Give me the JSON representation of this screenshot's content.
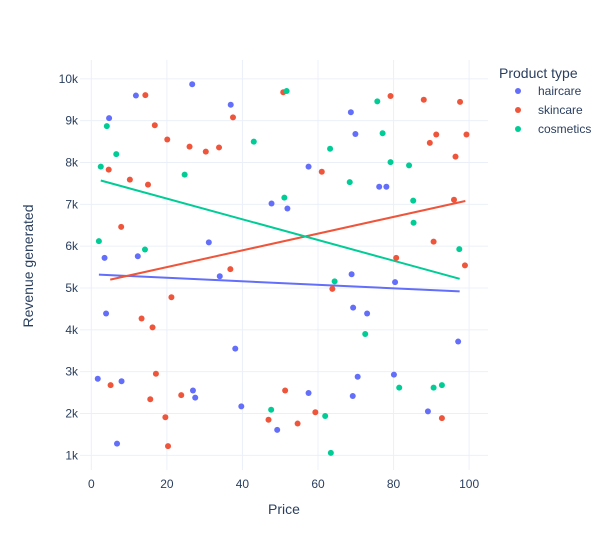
{
  "chart_data": {
    "type": "scatter",
    "xlabel": "Price",
    "ylabel": "Revenue generated",
    "xlim": [
      -3,
      105
    ],
    "ylim": [
      650,
      10450
    ],
    "x_ticks": [
      0,
      20,
      40,
      60,
      80,
      100
    ],
    "x_tick_labels": [
      "0",
      "20",
      "40",
      "60",
      "80",
      "100"
    ],
    "y_ticks": [
      1000,
      2000,
      3000,
      4000,
      5000,
      6000,
      7000,
      8000,
      9000,
      10000
    ],
    "y_tick_labels": [
      "1k",
      "2k",
      "3k",
      "4k",
      "5k",
      "6k",
      "7k",
      "8k",
      "9k",
      "10k"
    ],
    "grid": true,
    "legend": {
      "title": "Product type",
      "placement": "top-right"
    },
    "series": [
      {
        "name": "haircare",
        "color": "#636efa",
        "points": [
          [
            1.7,
            2830
          ],
          [
            3.5,
            5720
          ],
          [
            3.9,
            4390
          ],
          [
            4.7,
            9060
          ],
          [
            6.8,
            1280
          ],
          [
            8.0,
            2770
          ],
          [
            11.8,
            9600
          ],
          [
            12.3,
            5760
          ],
          [
            26.7,
            9870
          ],
          [
            26.9,
            2550
          ],
          [
            27.5,
            2380
          ],
          [
            31.1,
            6090
          ],
          [
            34.0,
            5280
          ],
          [
            36.9,
            9380
          ],
          [
            38.1,
            3550
          ],
          [
            39.7,
            2170
          ],
          [
            47.7,
            7020
          ],
          [
            49.2,
            1610
          ],
          [
            51.9,
            6900
          ],
          [
            57.5,
            7900
          ],
          [
            57.5,
            2490
          ],
          [
            68.7,
            9200
          ],
          [
            68.9,
            5330
          ],
          [
            69.2,
            2420
          ],
          [
            69.3,
            4530
          ],
          [
            69.9,
            8680
          ],
          [
            70.5,
            2880
          ],
          [
            73.0,
            4390
          ],
          [
            76.2,
            7420
          ],
          [
            78.1,
            7420
          ],
          [
            80.1,
            2930
          ],
          [
            80.4,
            5140
          ],
          [
            89.1,
            2050
          ],
          [
            97.1,
            3720
          ]
        ],
        "trend": [
          [
            2,
            5320
          ],
          [
            97.5,
            4920
          ]
        ]
      },
      {
        "name": "skincare",
        "color": "#ef553b",
        "points": [
          [
            4.6,
            7830
          ],
          [
            5.1,
            2680
          ],
          [
            7.9,
            6460
          ],
          [
            10.2,
            7590
          ],
          [
            13.3,
            4270
          ],
          [
            14.3,
            9610
          ],
          [
            15.0,
            7470
          ],
          [
            15.6,
            2340
          ],
          [
            16.2,
            4060
          ],
          [
            16.8,
            8890
          ],
          [
            17.1,
            2950
          ],
          [
            19.6,
            1910
          ],
          [
            20.1,
            8550
          ],
          [
            20.3,
            1220
          ],
          [
            21.2,
            4780
          ],
          [
            23.8,
            2440
          ],
          [
            26.0,
            8380
          ],
          [
            30.3,
            8260
          ],
          [
            33.8,
            8360
          ],
          [
            36.8,
            5450
          ],
          [
            37.5,
            9080
          ],
          [
            46.9,
            1850
          ],
          [
            50.8,
            9680
          ],
          [
            51.3,
            2550
          ],
          [
            54.6,
            1760
          ],
          [
            59.3,
            2030
          ],
          [
            61.0,
            7780
          ],
          [
            63.8,
            4980
          ],
          [
            79.2,
            9590
          ],
          [
            80.7,
            5720
          ],
          [
            88.0,
            9500
          ],
          [
            89.6,
            8470
          ],
          [
            90.6,
            6110
          ],
          [
            91.3,
            8670
          ],
          [
            92.8,
            1890
          ],
          [
            96.0,
            7110
          ],
          [
            96.4,
            8140
          ],
          [
            97.6,
            9450
          ],
          [
            98.9,
            5540
          ],
          [
            99.3,
            8670
          ]
        ],
        "trend": [
          [
            5,
            5200
          ],
          [
            99,
            7080
          ]
        ]
      },
      {
        "name": "cosmetics",
        "color": "#00cc96",
        "points": [
          [
            2.0,
            6120
          ],
          [
            2.5,
            7900
          ],
          [
            4.1,
            8870
          ],
          [
            6.6,
            8200
          ],
          [
            14.2,
            5920
          ],
          [
            24.7,
            7710
          ],
          [
            43.0,
            8500
          ],
          [
            47.6,
            2090
          ],
          [
            51.1,
            7160
          ],
          [
            51.7,
            9710
          ],
          [
            61.9,
            1940
          ],
          [
            63.2,
            8330
          ],
          [
            63.4,
            1060
          ],
          [
            64.4,
            5160
          ],
          [
            68.4,
            7530
          ],
          [
            72.5,
            3900
          ],
          [
            75.7,
            9460
          ],
          [
            77.1,
            8700
          ],
          [
            79.2,
            8010
          ],
          [
            81.5,
            2620
          ],
          [
            84.1,
            7930
          ],
          [
            85.2,
            7090
          ],
          [
            85.3,
            6560
          ],
          [
            90.6,
            2620
          ],
          [
            92.8,
            2680
          ],
          [
            97.4,
            5930
          ]
        ],
        "trend": [
          [
            2.5,
            7570
          ],
          [
            97.5,
            5220
          ]
        ]
      }
    ]
  }
}
